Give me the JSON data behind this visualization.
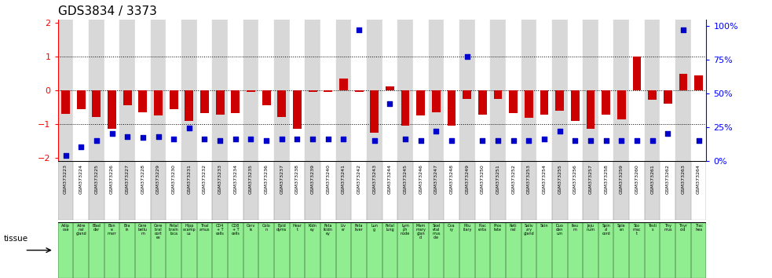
{
  "title": "GDS3834 / 3373",
  "gsm_labels": [
    "GSM373223",
    "GSM373224",
    "GSM373225",
    "GSM373226",
    "GSM373227",
    "GSM373228",
    "GSM373229",
    "GSM373230",
    "GSM373231",
    "GSM373232",
    "GSM373233",
    "GSM373234",
    "GSM373235",
    "GSM373236",
    "GSM373237",
    "GSM373238",
    "GSM373239",
    "GSM373240",
    "GSM373241",
    "GSM373242",
    "GSM373243",
    "GSM373244",
    "GSM373245",
    "GSM373246",
    "GSM373247",
    "GSM373248",
    "GSM373249",
    "GSM373250",
    "GSM373251",
    "GSM373252",
    "GSM373253",
    "GSM373254",
    "GSM373255",
    "GSM373256",
    "GSM373257",
    "GSM373258",
    "GSM373259",
    "GSM373260",
    "GSM373261",
    "GSM373262",
    "GSM373263",
    "GSM373264"
  ],
  "tissue_labels_short": [
    "Adip\nose",
    "Adre\nnal\ngland",
    "Blad\nder",
    "Bon\ne\nmarr",
    "Bra\nin",
    "Cere\nbellu\nm",
    "Cere\nbral\ncort\nex",
    "Fetal\nbrain\nloca",
    "Hipp\nocamp\nus",
    "Thal\namus",
    "CD4\n+ T\ncells",
    "CD8\n+ T\ncells",
    "Cerv\nix",
    "Colo\nn",
    "Epid\ndyms",
    "Hear\nt",
    "Kidn\ney",
    "Feta\nlkidn\ney",
    "Liv\ner",
    "Feta\nliver",
    "Lun\ng",
    "Fetal\nlung",
    "Lym\nph\nnode",
    "Mam\nmary\nglan\nd",
    "Skel\netal\nmus\ncle",
    "Ova\nry",
    "Pitu\nitary",
    "Plac\nenta",
    "Pros\ntate",
    "Reti\nnal",
    "Saliv\nary\ngland",
    "Skin",
    "Duo\nden\num",
    "Ileu\nm",
    "Jeju\nnum",
    "Spin\nal\ncord",
    "Sple\nen",
    "Sto\nmac\nt",
    "Testi\ns",
    "Thy\nmus",
    "Thyr\noid",
    "Trac\nhea"
  ],
  "log10_ratio": [
    -0.7,
    -0.55,
    -0.8,
    -1.15,
    -0.45,
    -0.65,
    -0.75,
    -0.55,
    -0.9,
    -0.68,
    -0.72,
    -0.68,
    -0.05,
    -0.45,
    -0.8,
    -1.15,
    -0.05,
    -0.05,
    0.35,
    -0.05,
    -1.25,
    0.12,
    -1.05,
    -0.75,
    -0.65,
    -1.05,
    -0.25,
    -0.72,
    -0.25,
    -0.68,
    -0.82,
    -0.72,
    -0.6,
    -0.9,
    -1.15,
    -0.72,
    -0.85,
    1.0,
    -0.28,
    -0.4,
    0.5,
    0.45
  ],
  "percentile_rank": [
    2,
    8,
    13,
    18,
    16,
    15,
    16,
    14,
    22,
    14,
    13,
    14,
    14,
    13,
    14,
    14,
    14,
    14,
    14,
    95,
    13,
    40,
    14,
    13,
    20,
    13,
    75,
    13,
    13,
    13,
    13,
    14,
    20,
    13,
    13,
    13,
    13,
    13,
    13,
    18,
    95,
    13
  ],
  "bar_color": "#cc0000",
  "dot_color": "#0000cc",
  "ylim_left": [
    -2.1,
    2.1
  ],
  "yticks_left": [
    -2,
    -1,
    0,
    1,
    2
  ],
  "yticks_right": [
    0,
    25,
    50,
    75,
    100
  ],
  "ytick_labels_right": [
    "0%",
    "25%",
    "50%",
    "75%",
    "100%"
  ],
  "hline_values": [
    -1,
    0,
    1
  ],
  "title_fontsize": 11,
  "background_color": "#ffffff",
  "col_bg_odd": "#d8d8d8",
  "col_bg_even": "#ffffff",
  "tissue_bg": "#90ee90",
  "tissue_border": "#000000"
}
